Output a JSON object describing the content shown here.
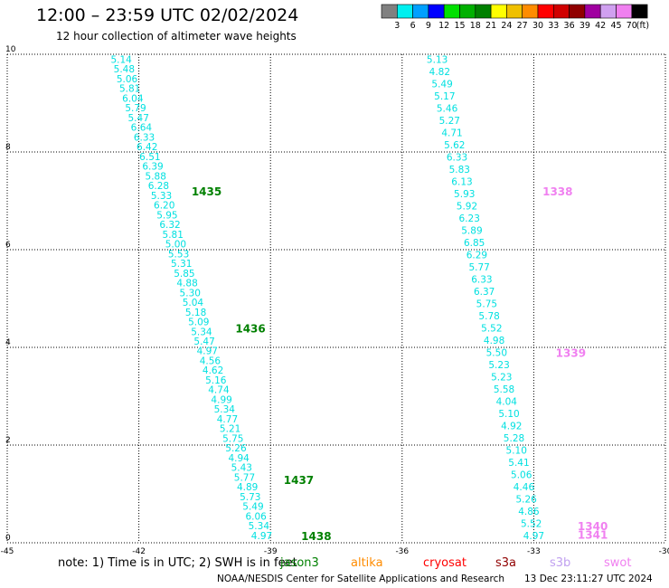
{
  "header": {
    "title": "12:00 – 23:59 UTC 02/02/2024",
    "subtitle": "12 hour collection of altimeter wave heights"
  },
  "scale": {
    "labels": [
      "3",
      "6",
      "9",
      "12",
      "15",
      "18",
      "21",
      "24",
      "27",
      "30",
      "33",
      "36",
      "39",
      "42",
      "45",
      "70"
    ],
    "unit": "(ft)",
    "colors": [
      "#808080",
      "#00f0f0",
      "#00a0ff",
      "#0000ff",
      "#00e000",
      "#00b000",
      "#008000",
      "#ffff00",
      "#f0c000",
      "#ff8c00",
      "#ff0000",
      "#d00000",
      "#900000",
      "#a000a0",
      "#d0a0f0",
      "#f080f0",
      "#000000"
    ]
  },
  "note": "note: 1) Time is in UTC; 2) SWH is in feet",
  "satellites": [
    {
      "name": "jason3",
      "color": "#008000"
    },
    {
      "name": "altika",
      "color": "#ff8c00"
    },
    {
      "name": "cryosat",
      "color": "#ff0000"
    },
    {
      "name": "s3a",
      "color": "#900000"
    },
    {
      "name": "s3b",
      "color": "#c0a0f0"
    },
    {
      "name": "swot",
      "color": "#f080f0"
    }
  ],
  "footer": {
    "credit": "NOAA/NESDIS Center for Satellite Applications and Research",
    "stamp": "13 Dec 23:11:27 UTC 2024"
  },
  "chart_data": {
    "type": "scatter",
    "xlim": [
      -45,
      -30
    ],
    "ylim": [
      0,
      10
    ],
    "xticks": [
      "-45",
      "-42",
      "-39",
      "-36",
      "-33",
      "-30"
    ],
    "yticks": [
      "0",
      "2",
      "4",
      "6",
      "8",
      "10"
    ],
    "grid": true,
    "track_color": "#00e0e0",
    "tracks": [
      {
        "name": "jason3",
        "values": [
          "5.14",
          "5.48",
          "5.06",
          "5.81",
          "6.04",
          "5.79",
          "5.47",
          "6.64",
          "6.33",
          "6.42",
          "6.51",
          "6.39",
          "5.88",
          "6.28",
          "5.33",
          "6.20",
          "5.95",
          "6.32",
          "5.81",
          "5.00",
          "5.53",
          "5.31",
          "5.85",
          "4.88",
          "5.30",
          "5.04",
          "5.18",
          "5.09",
          "5.34",
          "5.47",
          "4.97",
          "4.56",
          "4.62",
          "5.16",
          "4.74",
          "4.99",
          "5.34",
          "4.77",
          "5.21",
          "5.75",
          "5.26",
          "4.94",
          "5.43",
          "5.77",
          "4.89",
          "5.73",
          "5.49",
          "6.06",
          "5.34",
          "4.97"
        ],
        "lon_start": -42.4,
        "lat_start": 9.9,
        "lon_end": -39.2,
        "lat_end": 0.15,
        "time_labels": [
          {
            "text": "1435",
            "lon": -40.8,
            "lat": 7.2
          },
          {
            "text": "1436",
            "lon": -39.8,
            "lat": 4.4
          },
          {
            "text": "1437",
            "lon": -38.7,
            "lat": 1.3
          },
          {
            "text": "1438",
            "lon": -38.3,
            "lat": 0.15
          }
        ]
      },
      {
        "name": "swot",
        "values": [
          "5.13",
          "4.82",
          "5.49",
          "5.17",
          "5.46",
          "5.27",
          "4.71",
          "5.62",
          "6.33",
          "5.83",
          "6.13",
          "5.93",
          "5.92",
          "6.23",
          "5.89",
          "6.85",
          "6.29",
          "5.77",
          "6.33",
          "6.37",
          "5.75",
          "5.78",
          "5.52",
          "4.98",
          "5.50",
          "5.23",
          "5.23",
          "5.58",
          "4.04",
          "5.10",
          "4.92",
          "5.28",
          "5.10",
          "5.41",
          "5.06",
          "4.46",
          "5.26",
          "4.86",
          "5.52",
          "4.97"
        ],
        "lon_start": -35.2,
        "lat_start": 9.9,
        "lon_end": -33.0,
        "lat_end": 0.15,
        "time_labels": [
          {
            "text": "1338",
            "lon": -32.8,
            "lat": 7.2
          },
          {
            "text": "1339",
            "lon": -32.5,
            "lat": 3.9
          },
          {
            "text": "1340",
            "lon": -32.0,
            "lat": 0.35
          },
          {
            "text": "1341",
            "lon": -32.0,
            "lat": 0.18
          }
        ]
      }
    ]
  }
}
